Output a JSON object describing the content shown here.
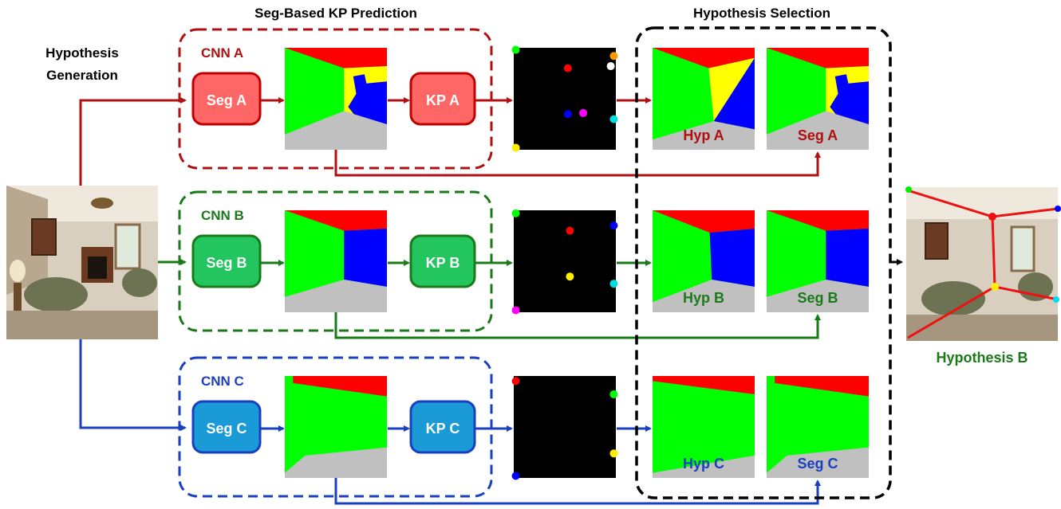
{
  "headers": {
    "hyp_gen_line1": "Hypothesis",
    "hyp_gen_line2": "Generation",
    "seg_kp": "Seg-Based KP Prediction",
    "hyp_sel": "Hypothesis Selection"
  },
  "rows": [
    {
      "id": "a",
      "cnn": "CNN A",
      "seg": "Seg A",
      "kp": "KP A",
      "hyp": "Hyp A",
      "seg_label": "Seg A",
      "color": "#b01010",
      "box_fill": "#ff6666",
      "box_stroke": "#c00000"
    },
    {
      "id": "b",
      "cnn": "CNN B",
      "seg": "Seg B",
      "kp": "KP B",
      "hyp": "Hyp B",
      "seg_label": "Seg B",
      "color": "#1a7a1a",
      "box_fill": "#22c55e",
      "box_stroke": "#1a7a1a"
    },
    {
      "id": "c",
      "cnn": "CNN C",
      "seg": "Seg C",
      "kp": "KP C",
      "hyp": "Hyp C",
      "seg_label": "Seg C",
      "color": "#1a3fbf",
      "box_fill": "#1a9ad6",
      "box_stroke": "#1a3fbf"
    }
  ],
  "output": {
    "label": "Hypothesis B",
    "color": "#1a7a1a"
  },
  "colors": {
    "ceiling": "#ff0000",
    "left_wall": "#00ff00",
    "front_wall_a": "#ffff00",
    "right_wall": "#0000ff",
    "floor": "#c0c0c0"
  }
}
